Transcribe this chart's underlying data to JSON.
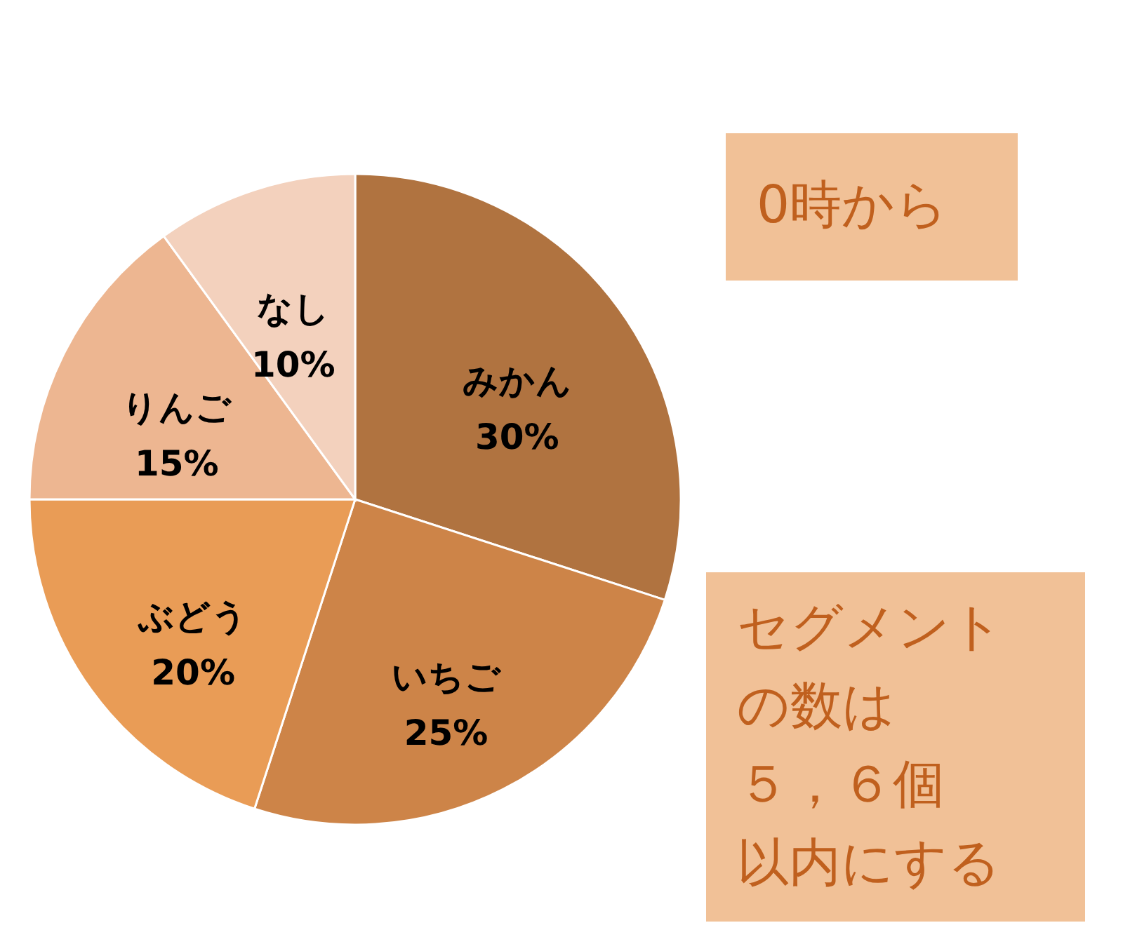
{
  "chart_data": {
    "type": "pie",
    "categories": [
      "みかん",
      "いちご",
      "ぶどう",
      "りんご",
      "なし"
    ],
    "values": [
      30,
      25,
      20,
      15,
      10
    ],
    "value_labels": [
      "30%",
      "25%",
      "20%",
      "15%",
      "10%"
    ],
    "colors": [
      "#b07340",
      "#cd8448",
      "#e99c56",
      "#edb691",
      "#f3d1bd"
    ],
    "annotations": [
      "0時から",
      "セグメントの数は５，６個以内にする"
    ]
  }
}
